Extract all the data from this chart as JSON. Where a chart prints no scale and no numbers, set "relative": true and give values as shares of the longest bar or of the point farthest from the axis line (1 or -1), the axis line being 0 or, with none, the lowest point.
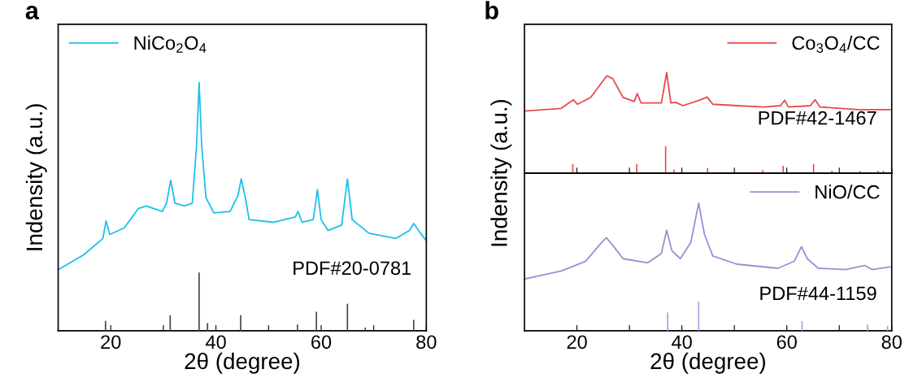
{
  "chart_data": [
    {
      "type": "line",
      "title": "a",
      "xlabel": "2θ (degree)",
      "ylabel": "Indensity (a.u.)",
      "relative": true,
      "xlim": [
        10,
        80
      ],
      "xticks": [
        20,
        {
          "value": 30,
          "label": null
        },
        40,
        {
          "value": 50,
          "label": null
        },
        60,
        {
          "value": 70,
          "label": null
        },
        80
      ],
      "tick_labels": "x",
      "legend": "top left",
      "annotations": [
        "PDF#20-0781"
      ],
      "series": [
        {
          "name": "NiCo$_{2}$O$_{4}$",
          "color": "#1ec0e8",
          "x": [
            10,
            14.85,
            18.5,
            19.1,
            19.8,
            22.6,
            25.2,
            26.7,
            29.8,
            30.6,
            31.4,
            32.2,
            34.0,
            35.5,
            36.3,
            36.8,
            37.3,
            38.1,
            39.6,
            42.7,
            44.2,
            44.8,
            45.6,
            46.3,
            51.0,
            55.1,
            55.6,
            56.4,
            58.5,
            59.3,
            60.0,
            61.3,
            63.9,
            65.0,
            65.9,
            69.1,
            74.2,
            76.8,
            77.6,
            78.9,
            79.9
          ],
          "values": [
            0.246,
            0.306,
            0.372,
            0.443,
            0.388,
            0.415,
            0.492,
            0.503,
            0.481,
            0.514,
            0.607,
            0.514,
            0.503,
            0.514,
            0.743,
            1.0,
            0.743,
            0.536,
            0.475,
            0.481,
            0.546,
            0.612,
            0.536,
            0.448,
            0.437,
            0.459,
            0.481,
            0.437,
            0.448,
            0.568,
            0.448,
            0.404,
            0.426,
            0.612,
            0.448,
            0.393,
            0.372,
            0.404,
            0.432,
            0.393,
            0.366
          ]
        },
        {
          "type": "bar",
          "color": "#404040",
          "x": [
            19.0,
            31.3,
            36.8,
            38.4,
            44.7,
            55.5,
            59.1,
            65.0,
            68.4,
            77.6
          ],
          "values": [
            0.04,
            0.063,
            0.235,
            0.031,
            0.063,
            0.025,
            0.077,
            0.109,
            0.013,
            0.044
          ]
        }
      ]
    },
    {
      "type": "line",
      "title": "b",
      "relative": true,
      "xlim": [
        10,
        80
      ],
      "xticks": [
        20,
        {
          "value": 30,
          "label": null
        },
        40,
        {
          "value": 50,
          "label": null
        },
        60,
        {
          "value": 70,
          "label": null
        },
        80
      ],
      "tick_labels": false,
      "legend": "top right",
      "annotations": [
        "PDF#42-1467"
      ],
      "series": [
        {
          "name": "Co$_{3}$O$_{4}$/CC",
          "color": "#e84a4a",
          "x": [
            10.0,
            17.0,
            19.3,
            20.1,
            22.6,
            25.7,
            26.8,
            28.8,
            30.9,
            31.5,
            32.2,
            36.1,
            37.1,
            37.9,
            38.8,
            40.2,
            43.3,
            44.8,
            45.9,
            50.5,
            55.7,
            58.8,
            59.6,
            60.3,
            64.5,
            65.4,
            66.3,
            73.8,
            79.7
          ],
          "values": [
            0.617,
            0.644,
            0.73,
            0.685,
            0.752,
            0.968,
            0.941,
            0.752,
            0.712,
            0.792,
            0.698,
            0.698,
            1.0,
            0.698,
            0.704,
            0.671,
            0.725,
            0.757,
            0.685,
            0.671,
            0.658,
            0.671,
            0.725,
            0.658,
            0.671,
            0.73,
            0.658,
            0.631,
            0.631
          ]
        },
        {
          "type": "bar",
          "color": "#e84a4a",
          "x": [
            19.2,
            31.4,
            36.9,
            38.5,
            44.9,
            55.4,
            59.3,
            65.1,
            68.6,
            74.0,
            77.4,
            78.4
          ],
          "values": [
            0.092,
            0.092,
            0.267,
            0.038,
            0.051,
            0.03,
            0.073,
            0.092,
            0.024,
            0.02,
            0.024,
            0.024
          ]
        }
      ]
    },
    {
      "type": "line",
      "xlabel": "2θ (degree)",
      "ylabel": "Indensity (a.u.)",
      "relative": true,
      "xlim": [
        10,
        80
      ],
      "xticks": [
        20,
        {
          "value": 30,
          "label": null
        },
        40,
        {
          "value": 50,
          "label": null
        },
        60,
        {
          "value": 70,
          "label": null
        },
        80
      ],
      "tick_labels": "x",
      "legend": "top right",
      "annotations": [
        "PDF#44-1159"
      ],
      "series": [
        {
          "name": "NiO/CC",
          "color": "#9b8fd4",
          "x": [
            10.0,
            17.0,
            21.6,
            24.7,
            25.6,
            26.8,
            28.8,
            33.5,
            36.1,
            37.1,
            38.1,
            39.7,
            41.7,
            43.2,
            44.3,
            45.9,
            50.5,
            58.3,
            61.4,
            62.8,
            63.9,
            66.0,
            71.2,
            74.8,
            76.3,
            79.7
          ],
          "values": [
            0.406,
            0.469,
            0.544,
            0.692,
            0.73,
            0.671,
            0.565,
            0.533,
            0.607,
            0.788,
            0.628,
            0.565,
            0.692,
            1.0,
            0.756,
            0.586,
            0.522,
            0.49,
            0.544,
            0.66,
            0.565,
            0.49,
            0.48,
            0.512,
            0.48,
            0.501
          ]
        },
        {
          "type": "bar",
          "color": "#a99be0",
          "x": [
            37.3,
            43.2,
            62.9,
            75.4,
            79.2
          ],
          "values": [
            0.144,
            0.229,
            0.076,
            0.049,
            0.038
          ]
        }
      ]
    }
  ]
}
